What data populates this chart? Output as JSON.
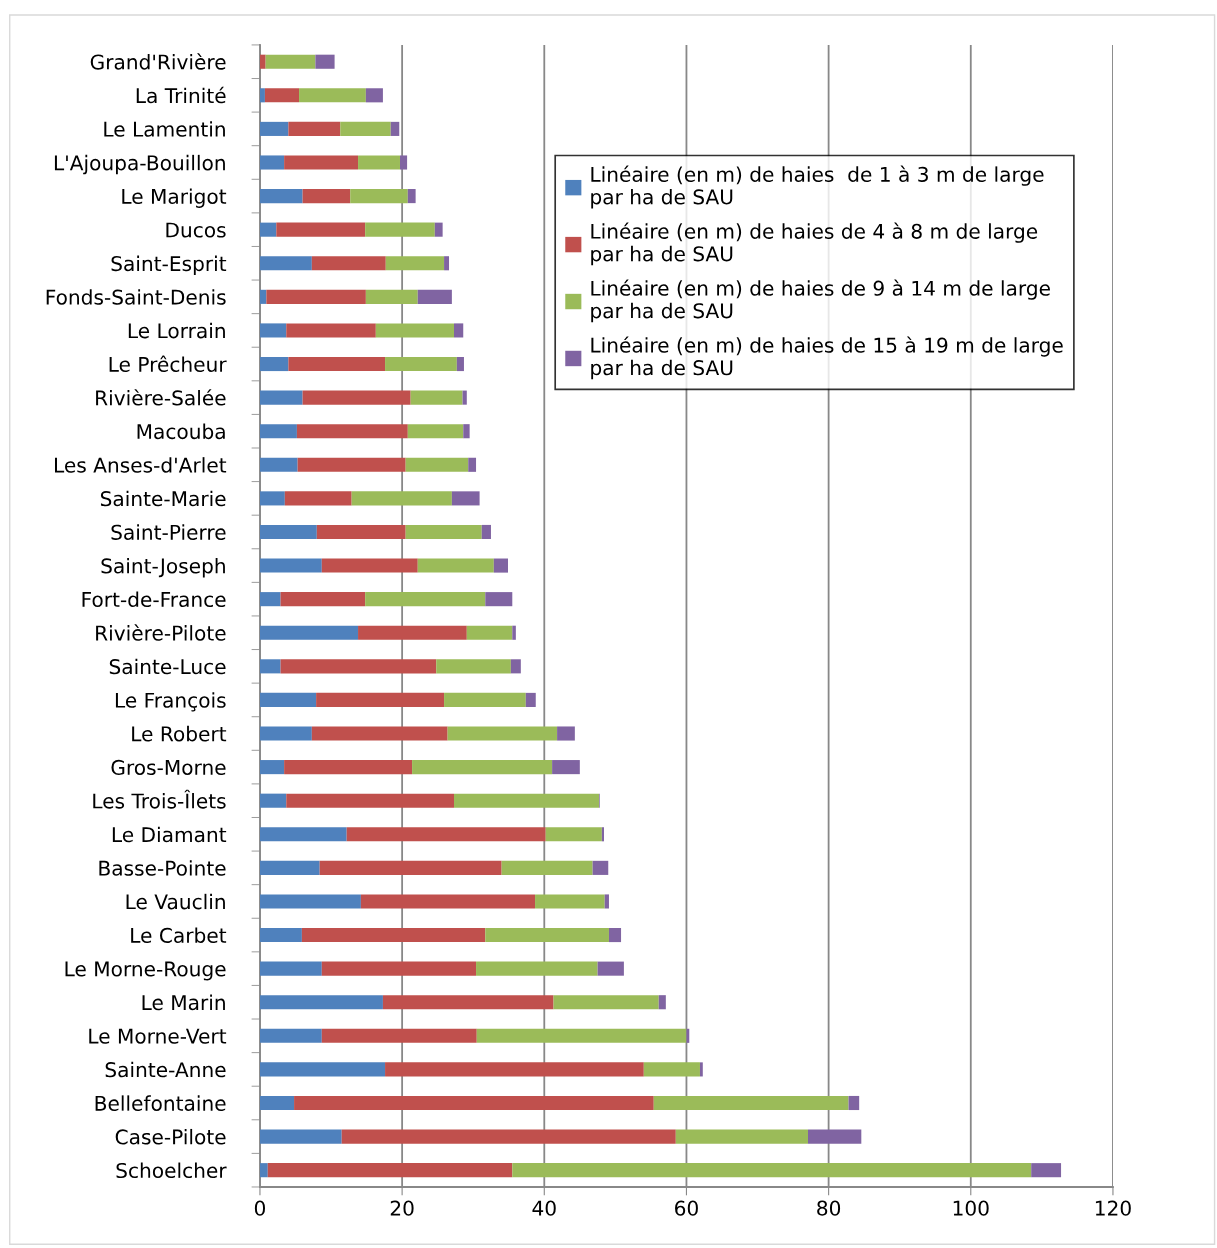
{
  "chart_data": {
    "type": "bar",
    "orientation": "horizontal",
    "stacked": true,
    "categories": [
      "Grand'Rivière",
      "La Trinité",
      "Le Lamentin",
      "L'Ajoupa-Bouillon",
      "Le Marigot",
      "Ducos",
      "Saint-Esprit",
      "Fonds-Saint-Denis",
      "Le Lorrain",
      "Le Prêcheur",
      "Rivière-Salée",
      "Macouba",
      "Les Anses-d'Arlet",
      "Sainte-Marie",
      "Saint-Pierre",
      "Saint-Joseph",
      "Fort-de-France",
      "Rivière-Pilote",
      "Sainte-Luce",
      "Le François",
      "Le Robert",
      "Gros-Morne",
      "Les Trois-Îlets",
      "Le Diamant",
      "Basse-Pointe",
      "Le Vauclin",
      "Le Carbet",
      "Le Morne-Rouge",
      "Le Marin",
      "Le Morne-Vert",
      "Sainte-Anne",
      "Bellefontaine",
      "Case-Pilote",
      "Schoelcher"
    ],
    "series": [
      {
        "name": "Linéaire (en m) de haies  de 1 à 3 m de large\npar ha de SAU",
        "color": "#4f81bd",
        "values": [
          0,
          0.7,
          4.0,
          3.4,
          6.0,
          2.3,
          7.3,
          0.9,
          3.7,
          4.0,
          6.0,
          5.2,
          5.3,
          3.5,
          8.0,
          8.7,
          2.9,
          13.8,
          2.9,
          7.9,
          7.3,
          3.4,
          3.7,
          12.2,
          8.4,
          14.2,
          5.9,
          8.7,
          17.3,
          8.7,
          17.6,
          4.8,
          11.5,
          1.1
        ]
      },
      {
        "name": "Linéaire (en m) de haies de 4 à 8 m de large\npar ha de SAU",
        "color": "#c0504d",
        "values": [
          0.8,
          4.8,
          7.3,
          10.4,
          6.7,
          12.5,
          10.4,
          14.0,
          12.6,
          13.6,
          15.2,
          15.6,
          15.2,
          9.4,
          12.5,
          13.5,
          11.9,
          15.3,
          21.9,
          18.0,
          19.1,
          18.0,
          23.6,
          28.0,
          25.6,
          24.5,
          25.8,
          21.7,
          24.0,
          21.8,
          36.4,
          50.6,
          47.0,
          34.4
        ]
      },
      {
        "name": "Linéaire (en m) de haies de 9 à 14 m de large\npar ha de SAU",
        "color": "#9bbb59",
        "values": [
          7.0,
          9.4,
          7.1,
          5.9,
          8.1,
          9.8,
          8.2,
          7.3,
          11.0,
          10.1,
          7.3,
          7.8,
          8.8,
          14.1,
          10.7,
          10.7,
          16.9,
          6.4,
          10.5,
          11.5,
          15.4,
          19.7,
          20.4,
          7.9,
          12.8,
          9.8,
          17.4,
          17.1,
          14.8,
          29.5,
          7.9,
          27.4,
          18.6,
          73.0
        ]
      },
      {
        "name": "Linéaire (en m) de haies de 15 à 19 m de large\npar ha de SAU",
        "color": "#8064a2",
        "values": [
          2.7,
          2.4,
          1.2,
          1.0,
          1.1,
          1.1,
          0.7,
          4.8,
          1.3,
          1.0,
          0.6,
          0.9,
          1.1,
          3.9,
          1.3,
          2.0,
          3.8,
          0.5,
          1.4,
          1.4,
          2.5,
          3.9,
          0.1,
          0.3,
          2.2,
          0.6,
          1.7,
          3.7,
          1.0,
          0.4,
          0.4,
          1.5,
          7.5,
          4.2
        ]
      }
    ],
    "xlim": [
      0,
      120
    ],
    "xticks": [
      0,
      20,
      40,
      60,
      80,
      100,
      120
    ],
    "grid": "x",
    "legend": "top right"
  }
}
